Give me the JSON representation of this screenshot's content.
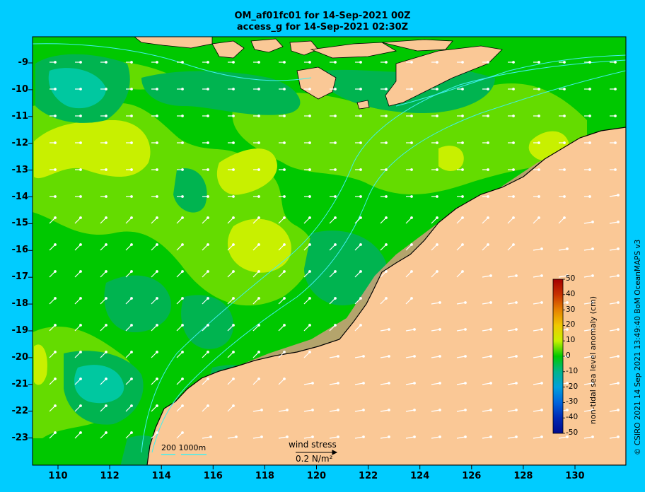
{
  "title_line1": "OM_af01fc01 for 14-Sep-2021 00Z",
  "title_line2": "access_g for 14-Sep-2021 02:30Z",
  "latitudes": [
    "-9",
    "-10",
    "-11",
    "-12",
    "-13",
    "-14",
    "-15",
    "-16",
    "-17",
    "-18",
    "-19",
    "-20",
    "-21",
    "-22",
    "-23"
  ],
  "longitudes": [
    "110",
    "112",
    "114",
    "116",
    "118",
    "120",
    "122",
    "124",
    "126",
    "128",
    "130"
  ],
  "colorbar": {
    "label": "non-tidal sea level anomaly (cm)",
    "ticks": [
      "50",
      "40",
      "30",
      "20",
      "10",
      "0",
      "-10",
      "-20",
      "-30",
      "-40",
      "-50"
    ],
    "colors": [
      "#a50000",
      "#c83c00",
      "#e67800",
      "#f0b400",
      "#e6e600",
      "#b4e614",
      "#64dc00",
      "#00c800",
      "#00b43c",
      "#00a0a0",
      "#00a0c8",
      "#0078dc",
      "#0050dc",
      "#0028b4",
      "#000a8c"
    ]
  },
  "legend": {
    "wind_stress_label": "wind stress",
    "wind_stress_value": "0.2 N/m²",
    "depth_label": "200  1000m"
  },
  "credit": "© CSIRO 2021  14 Sep 2021 13:49:40 BoM OceanMAPS v3",
  "map_colors": {
    "land": "#fac896",
    "ocean_base": "#00c800",
    "anomaly_high": "#c8f000",
    "anomaly_mid": "#64dc00",
    "anomaly_low": "#00b450",
    "anomaly_lowest": "#00c8a0",
    "isobath": "#40f0f0",
    "shelf": "#c8a078"
  }
}
